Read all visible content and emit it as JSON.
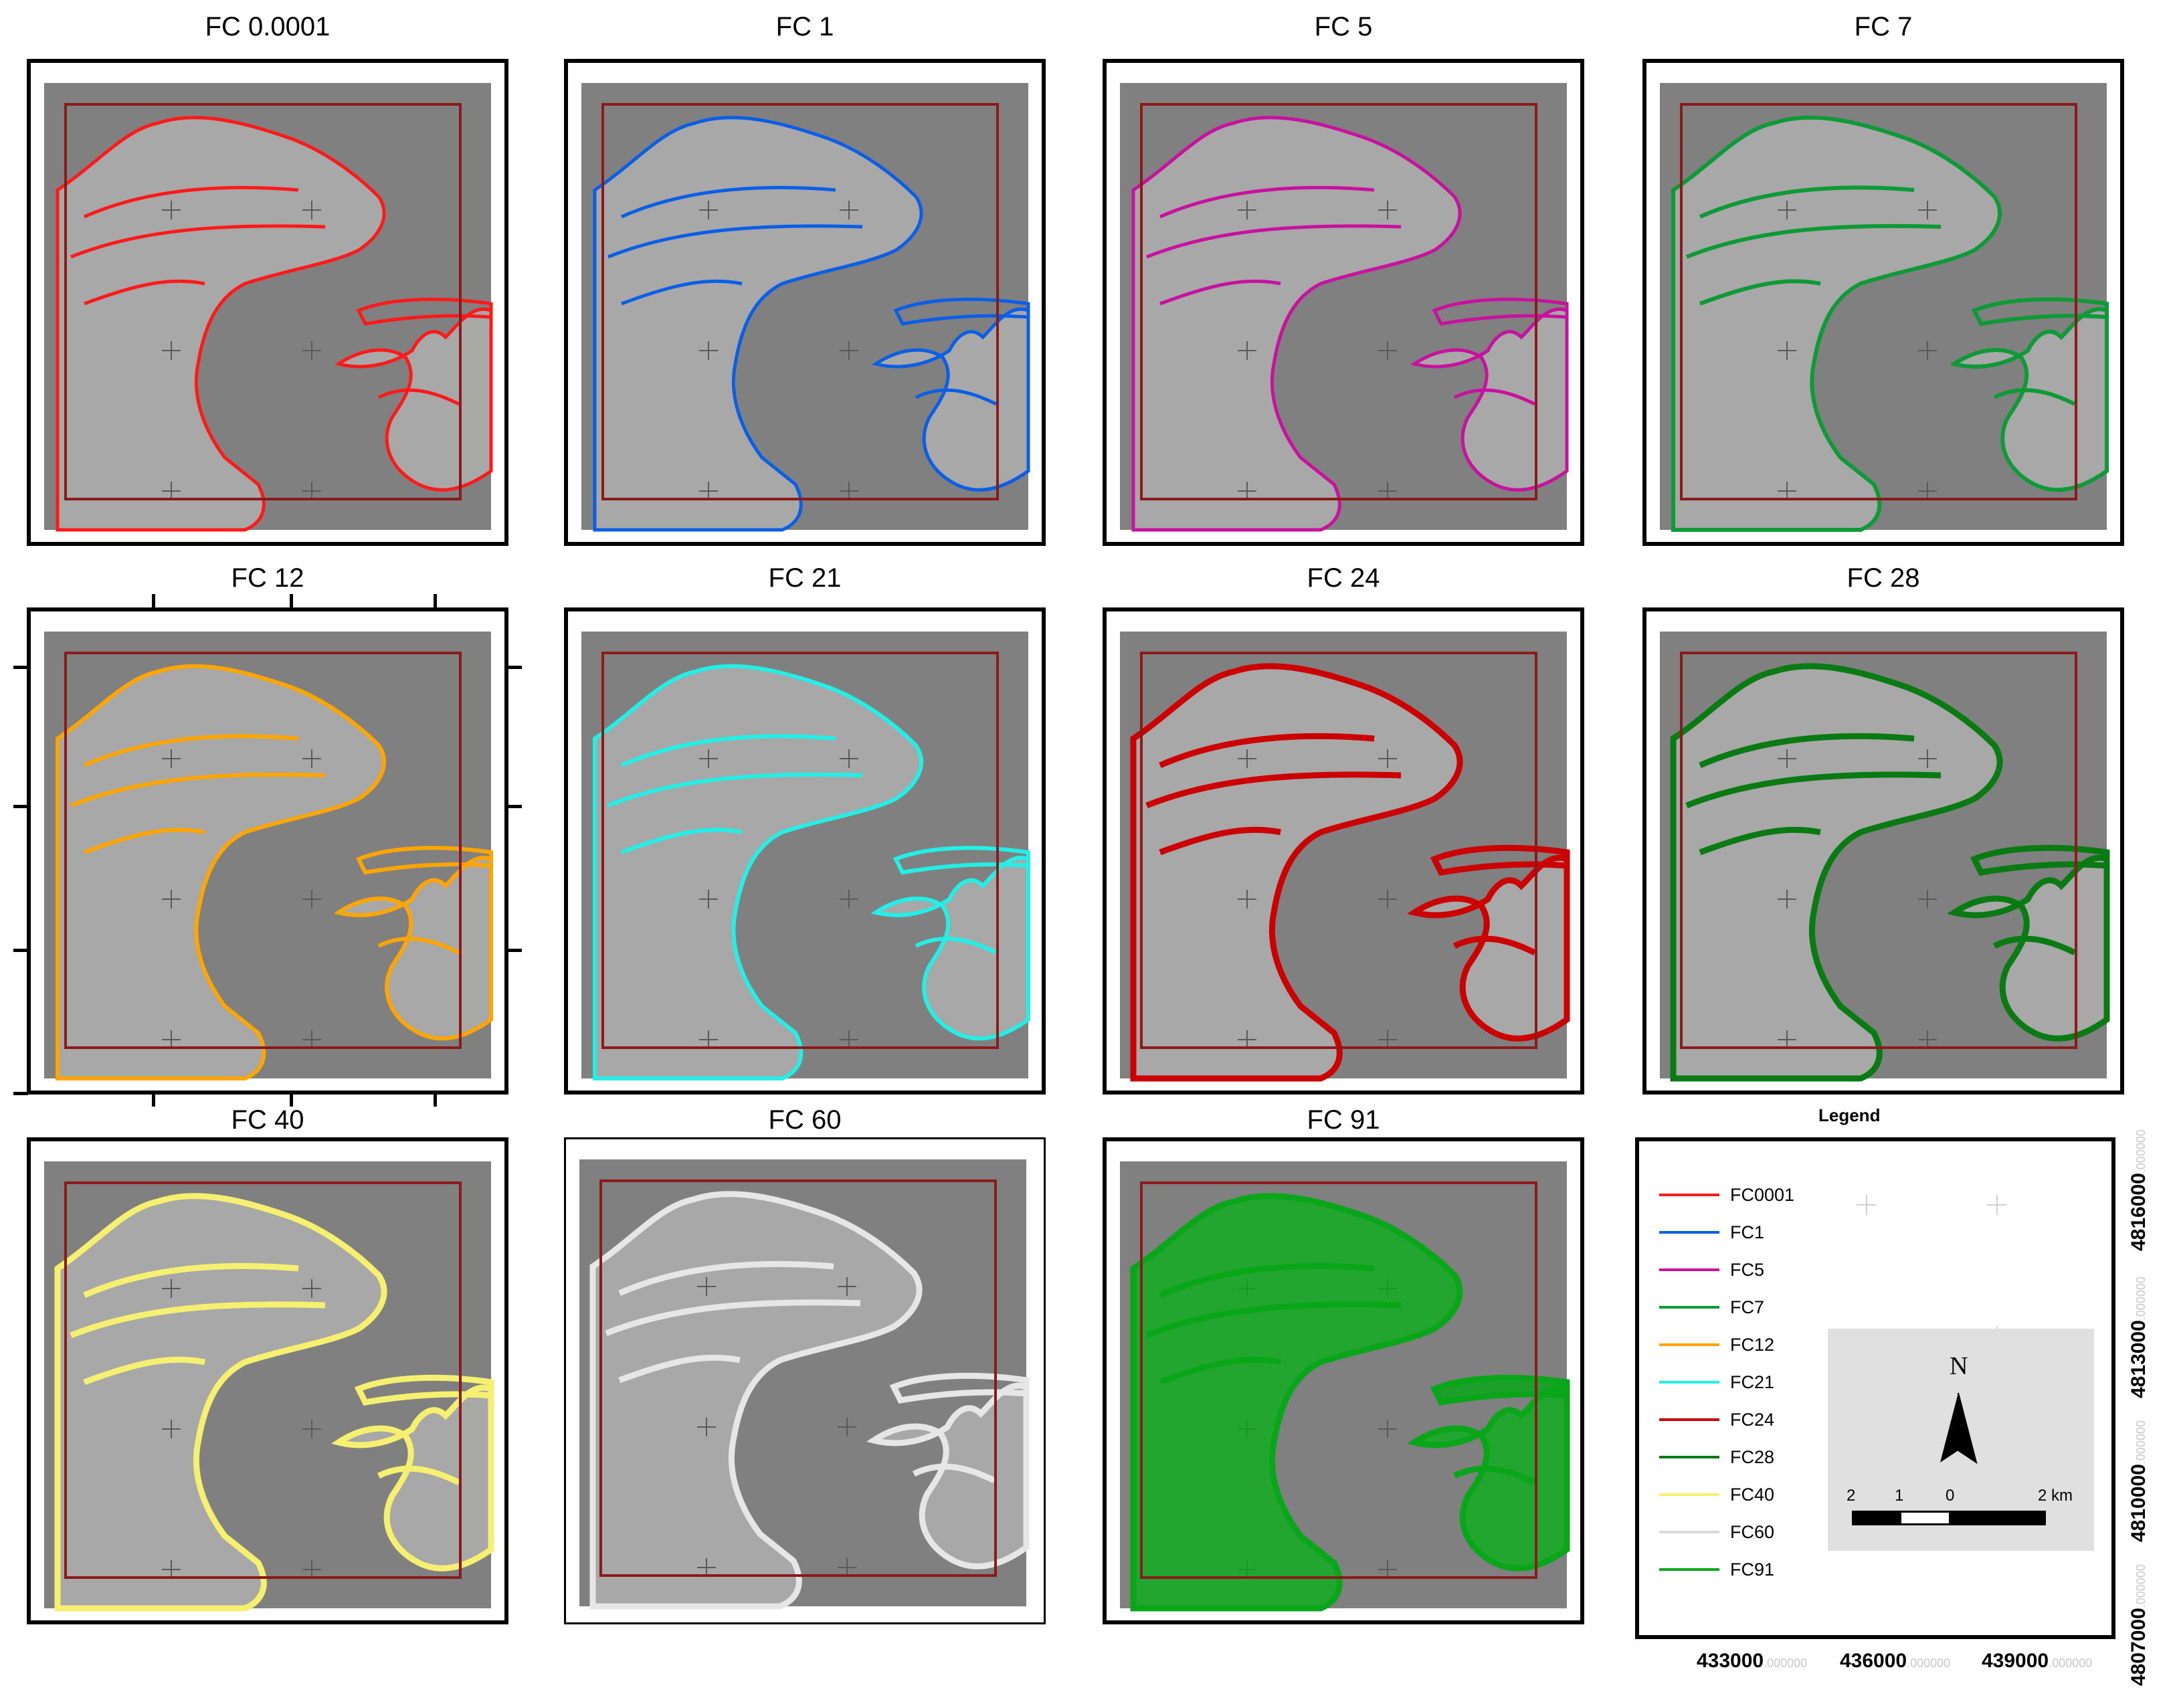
{
  "panels": [
    {
      "title": "FC 0.0001",
      "color": "#ff1a1a"
    },
    {
      "title": "FC 1",
      "color": "#0a5fe6"
    },
    {
      "title": "FC 5",
      "color": "#c8119e"
    },
    {
      "title": "FC 7",
      "color": "#0e9a36"
    },
    {
      "title": "FC 12",
      "color": "#ffa500"
    },
    {
      "title": "FC 21",
      "color": "#22f0e6"
    },
    {
      "title": "FC 24",
      "color": "#cc0000"
    },
    {
      "title": "FC 28",
      "color": "#0a7a12"
    },
    {
      "title": "FC 40",
      "color": "#f6f070"
    },
    {
      "title": "FC 60",
      "color": "#e6e6e6"
    },
    {
      "title": "FC 91",
      "color": "#0aa61a"
    }
  ],
  "legend": {
    "title": "Legend",
    "items": [
      {
        "label": "FC0001",
        "color": "#ff1a1a"
      },
      {
        "label": "FC1",
        "color": "#0a5fe6"
      },
      {
        "label": "FC5",
        "color": "#c8119e"
      },
      {
        "label": "FC7",
        "color": "#0e9a36"
      },
      {
        "label": "FC12",
        "color": "#ffa500"
      },
      {
        "label": "FC21",
        "color": "#22f0e6"
      },
      {
        "label": "FC24",
        "color": "#cc0000"
      },
      {
        "label": "FC28",
        "color": "#0a7a12"
      },
      {
        "label": "FC40",
        "color": "#f6f070"
      },
      {
        "label": "FC60",
        "color": "#d9d9d9"
      },
      {
        "label": "FC91",
        "color": "#0aa61a"
      }
    ]
  },
  "north_arrow": {
    "label": "N"
  },
  "scale_bar": {
    "labels": [
      "2",
      "1",
      "0",
      "2 km"
    ]
  },
  "x_coords": [
    {
      "value": "433000",
      "suffix": ".000000"
    },
    {
      "value": "436000",
      "suffix": ".000000"
    },
    {
      "value": "439000",
      "suffix": ".000000"
    }
  ],
  "y_coords": [
    {
      "value": "4807000",
      "suffix": ".000000"
    },
    {
      "value": "4810000",
      "suffix": ".000000"
    },
    {
      "value": "4813000",
      "suffix": ".000000"
    },
    {
      "value": "4816000",
      "suffix": ".000000"
    }
  ],
  "colors": {
    "hillshade_background": "#808080",
    "study_area_outline": "#8b1a1a"
  }
}
